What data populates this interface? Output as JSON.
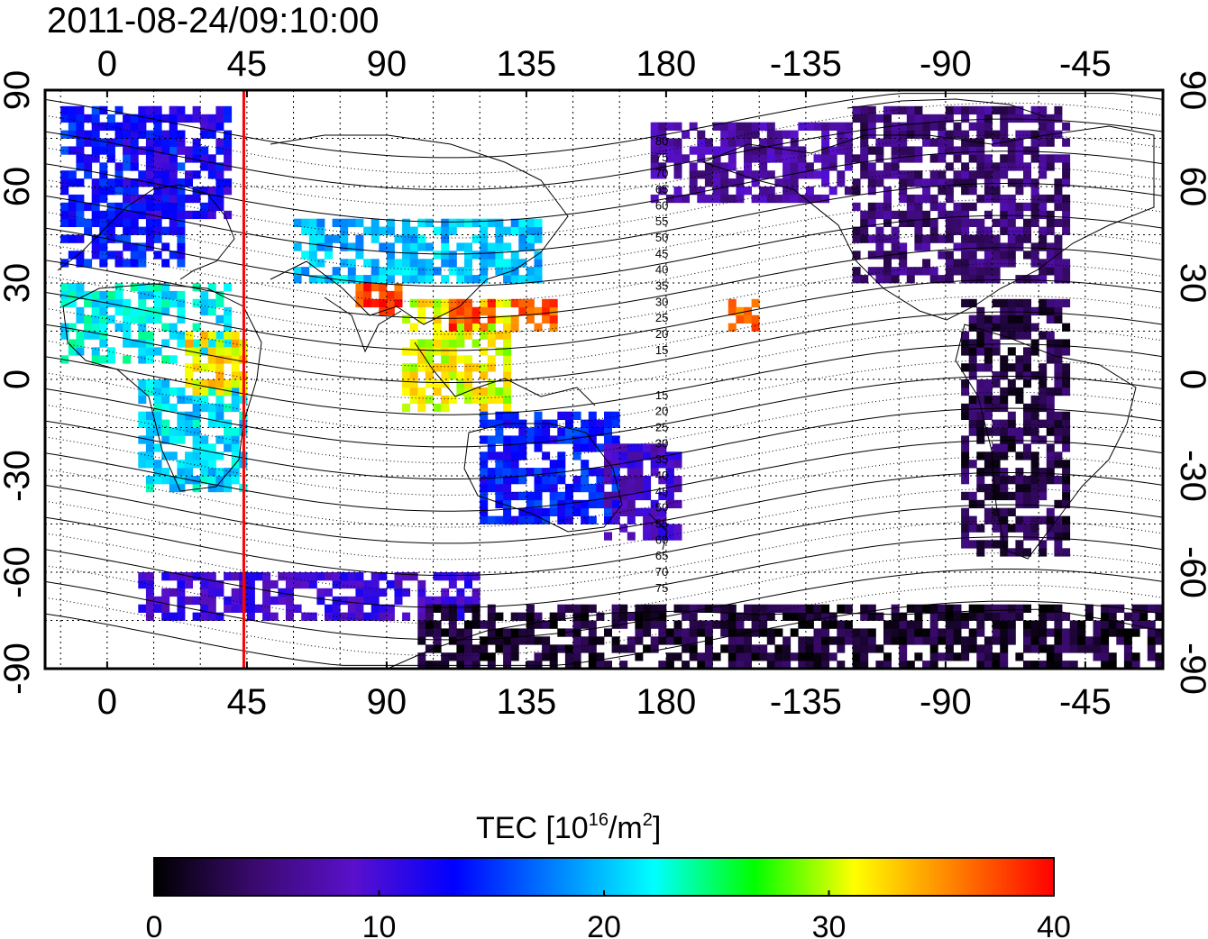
{
  "title": "2011-08-24/09:10:00",
  "top_axis": {
    "ticks": [
      "0",
      "45",
      "90",
      "135",
      "180",
      "-135",
      "-90",
      "-45"
    ]
  },
  "bottom_axis": {
    "ticks": [
      "0",
      "45",
      "90",
      "135",
      "180",
      "-135",
      "-90",
      "-45"
    ]
  },
  "left_axis": {
    "ticks": [
      "90",
      "60",
      "30",
      "0",
      "-30",
      "-60",
      "-90"
    ]
  },
  "right_axis": {
    "ticks": [
      "90",
      "60",
      "30",
      "0",
      "-30",
      "-60",
      "-90"
    ]
  },
  "map": {
    "projection": "equirectangular",
    "lon_range_deg": [
      -20,
      340
    ],
    "lat_range_deg": [
      -90,
      90
    ],
    "grid": "dotted every 15 degrees",
    "marker_line": {
      "longitude": 44,
      "color": "#ff0000"
    },
    "north_labels": [
      "80",
      "75",
      "70",
      "65",
      "60",
      "55",
      "50",
      "45",
      "40",
      "35",
      "30",
      "25",
      "20",
      "15"
    ],
    "south_labels": [
      "15",
      "20",
      "25",
      "30",
      "35",
      "40",
      "45",
      "50",
      "55",
      "60",
      "65",
      "70",
      "75"
    ]
  },
  "colorbar": {
    "title_main": "TEC  [10",
    "title_sup": "16",
    "title_tail": "/m",
    "title_sup2": "2",
    "title_end": "]",
    "min": 0,
    "max": 40,
    "tick_labels": [
      "0",
      "10",
      "20",
      "30",
      "40"
    ],
    "colormap": [
      "#000000",
      "#3a0a6e",
      "#5a10cc",
      "#0000ff",
      "#0080ff",
      "#00ffff",
      "#00ff00",
      "#ffff00",
      "#ff8000",
      "#ff0000"
    ]
  },
  "chart_data": {
    "type": "heatmap",
    "title": "2011-08-24/09:10:00",
    "xlabel": "",
    "ylabel": "",
    "x_range": [
      -20,
      340
    ],
    "y_range": [
      -90,
      90
    ],
    "value_label": "TEC [10^16/m^2]",
    "value_range": [
      0,
      40
    ],
    "regions": [
      {
        "lon": [
          -15,
          25
        ],
        "lat": [
          35,
          85
        ],
        "tec": 14
      },
      {
        "lon": [
          5,
          40
        ],
        "lat": [
          50,
          85
        ],
        "tec": 12
      },
      {
        "lon": [
          -15,
          40
        ],
        "lat": [
          5,
          30
        ],
        "tec": 22
      },
      {
        "lon": [
          10,
          45
        ],
        "lat": [
          -35,
          0
        ],
        "tec": 21
      },
      {
        "lon": [
          25,
          45
        ],
        "lat": [
          -5,
          15
        ],
        "tec": 32
      },
      {
        "lon": [
          60,
          140
        ],
        "lat": [
          30,
          50
        ],
        "tec": 20
      },
      {
        "lon": [
          80,
          95
        ],
        "lat": [
          20,
          30
        ],
        "tec": 38
      },
      {
        "lon": [
          95,
          130
        ],
        "lat": [
          -10,
          25
        ],
        "tec": 31
      },
      {
        "lon": [
          110,
          125
        ],
        "lat": [
          15,
          25
        ],
        "tec": 38
      },
      {
        "lon": [
          130,
          145
        ],
        "lat": [
          15,
          25
        ],
        "tec": 37
      },
      {
        "lon": [
          200,
          210
        ],
        "lat": [
          15,
          25
        ],
        "tec": 36
      },
      {
        "lon": [
          120,
          165
        ],
        "lat": [
          -45,
          -10
        ],
        "tec": 14
      },
      {
        "lon": [
          160,
          185
        ],
        "lat": [
          -50,
          -20
        ],
        "tec": 9
      },
      {
        "lon": [
          175,
          240
        ],
        "lat": [
          55,
          80
        ],
        "tec": 7
      },
      {
        "lon": [
          240,
          310
        ],
        "lat": [
          30,
          85
        ],
        "tec": 5
      },
      {
        "lon": [
          275,
          310
        ],
        "lat": [
          -55,
          25
        ],
        "tec": 3
      },
      {
        "lon": [
          10,
          120
        ],
        "lat": [
          -75,
          -62
        ],
        "tec": 10
      },
      {
        "lon": [
          100,
          340
        ],
        "lat": [
          -90,
          -72
        ],
        "tec": 2
      }
    ]
  }
}
